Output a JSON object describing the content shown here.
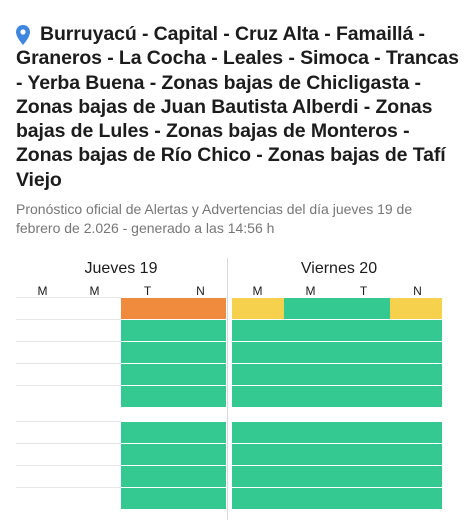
{
  "location": {
    "title": "Burruyacú - Capital - Cruz Alta - Famaillá - Graneros - La Cocha - Leales - Simoca - Trancas - Yerba Buena - Zonas bajas de Chicligasta - Zonas bajas de Juan Bautista Alberdi - Zonas bajas de Lules - Zonas bajas de Monteros - Zonas bajas de Río Chico - Zonas bajas de Tafí Viejo",
    "icon": "location-pin-icon",
    "icon_color": "#3f86e0"
  },
  "subtitle": "Pronóstico oficial de Alertas y Advertencias del día jueves 19 de febrero de 2.026 - generado a las 14:56 h",
  "colors": {
    "green": "#34c991",
    "orange": "#f08a3c",
    "yellow": "#f6d14d"
  },
  "days": [
    {
      "label": "Jueves 19",
      "periods": [
        "M",
        "M",
        "T",
        "N"
      ]
    },
    {
      "label": "Viernes 20",
      "periods": [
        "M",
        "M",
        "T",
        "N"
      ]
    }
  ],
  "alert_rows": [
    {
      "day0": [
        null,
        null,
        "orange",
        "orange"
      ],
      "day1": [
        "yellow",
        "green",
        "green",
        "yellow"
      ]
    },
    {
      "day0": [
        null,
        null,
        "green",
        "green"
      ],
      "day1": [
        "green",
        "green",
        "green",
        "green"
      ]
    },
    {
      "day0": [
        null,
        null,
        "green",
        "green"
      ],
      "day1": [
        "green",
        "green",
        "green",
        "green"
      ]
    },
    {
      "day0": [
        null,
        null,
        "green",
        "green"
      ],
      "day1": [
        "green",
        "green",
        "green",
        "green"
      ]
    },
    {
      "day0": [
        null,
        null,
        "green",
        "green"
      ],
      "day1": [
        "green",
        "green",
        "green",
        "green"
      ]
    },
    {
      "day0": [
        null,
        null,
        "green",
        "green"
      ],
      "day1": [
        "green",
        "green",
        "green",
        "green"
      ]
    },
    {
      "day0": [
        null,
        null,
        "green",
        "green"
      ],
      "day1": [
        "green",
        "green",
        "green",
        "green"
      ]
    },
    {
      "day0": [
        null,
        null,
        "green",
        "green"
      ],
      "day1": [
        "green",
        "green",
        "green",
        "green"
      ]
    },
    {
      "day0": [
        null,
        null,
        "green",
        "green"
      ],
      "day1": [
        "green",
        "green",
        "green",
        "green"
      ]
    }
  ]
}
